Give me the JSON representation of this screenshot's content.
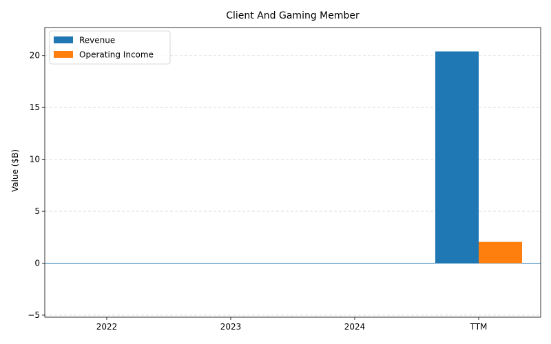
{
  "chart_data": {
    "type": "bar",
    "title": "Client And Gaming Member",
    "xlabel": "",
    "ylabel": "Value ($B)",
    "categories": [
      "2022",
      "2023",
      "2024",
      "TTM"
    ],
    "series": [
      {
        "name": "Revenue",
        "color": "#1f77b4",
        "values": [
          0,
          0,
          0,
          20.4
        ]
      },
      {
        "name": "Operating Income",
        "color": "#ff7f0e",
        "values": [
          0,
          0,
          0,
          2.05
        ]
      }
    ],
    "ylim": [
      -5.2,
      22.7
    ],
    "yticks": [
      -5,
      0,
      5,
      10,
      15,
      20
    ],
    "grid": true,
    "legend_position": "upper-left"
  }
}
